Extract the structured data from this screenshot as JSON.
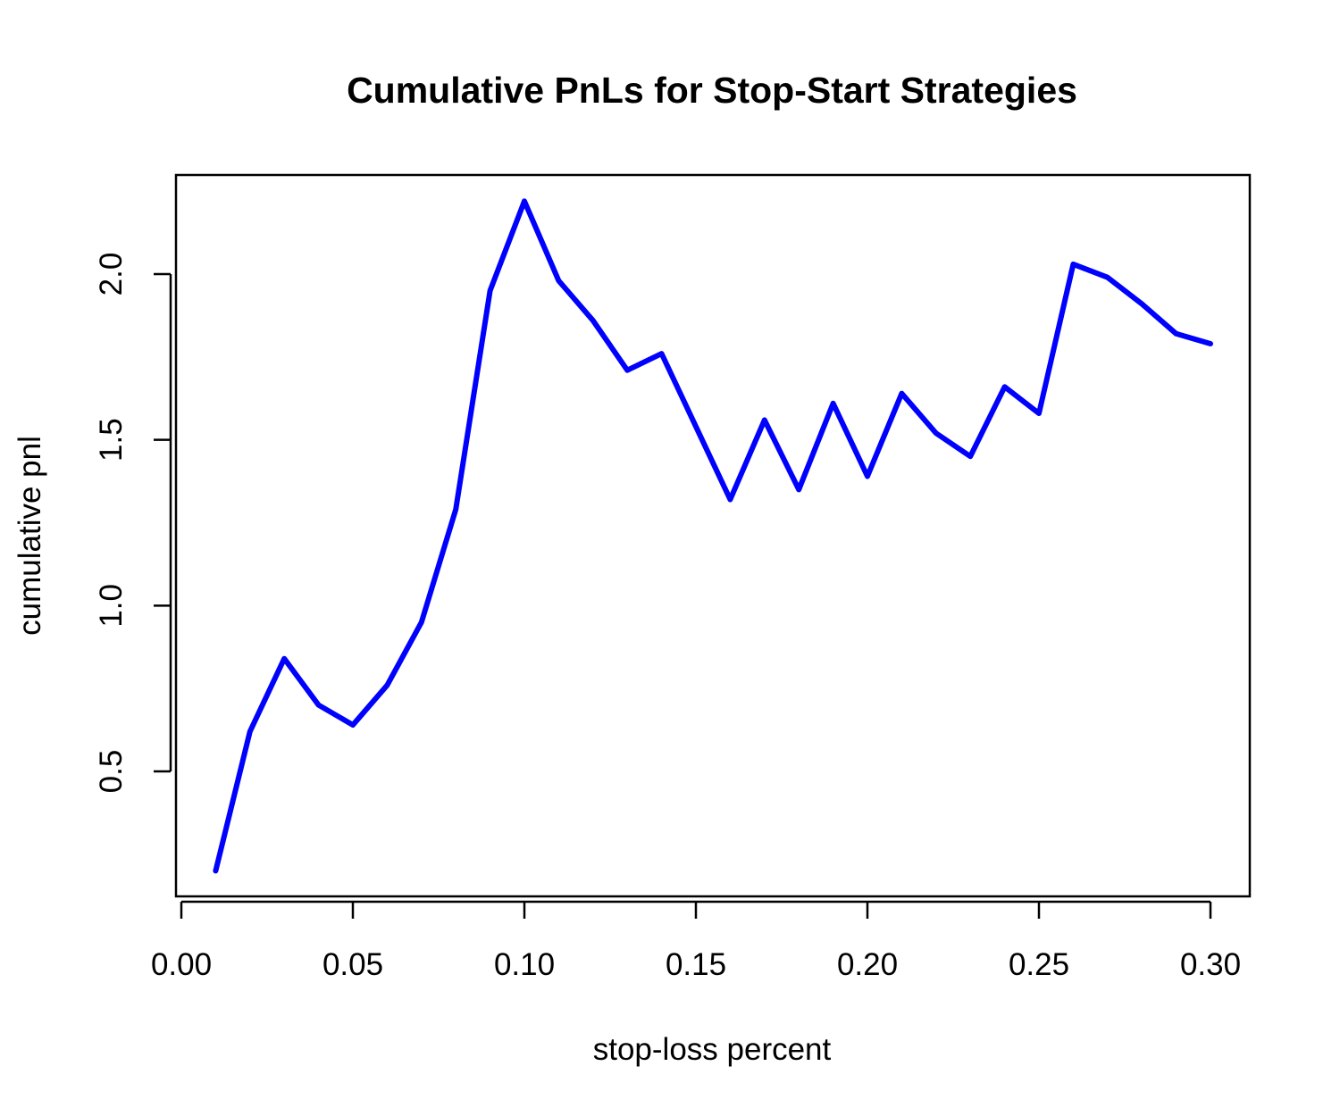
{
  "chart_data": {
    "type": "line",
    "title": "Cumulative PnLs for Stop-Start Strategies",
    "xlabel": "stop-loss percent",
    "ylabel": "cumulative pnl",
    "xlim": [
      0.0,
      0.3
    ],
    "ylim": [
      0.2,
      2.2
    ],
    "x_ticks": [
      0.0,
      0.05,
      0.1,
      0.15,
      0.2,
      0.25,
      0.3
    ],
    "x_tick_labels": [
      "0.00",
      "0.05",
      "0.10",
      "0.15",
      "0.20",
      "0.25",
      "0.30"
    ],
    "y_ticks": [
      0.5,
      1.0,
      1.5,
      2.0
    ],
    "y_tick_labels": [
      "0.5",
      "1.0",
      "1.5",
      "2.0"
    ],
    "grid": false,
    "series": [
      {
        "color": "#0000ff",
        "x": [
          0.01,
          0.02,
          0.03,
          0.04,
          0.05,
          0.06,
          0.07,
          0.08,
          0.09,
          0.1,
          0.11,
          0.12,
          0.13,
          0.14,
          0.15,
          0.16,
          0.17,
          0.18,
          0.19,
          0.2,
          0.21,
          0.22,
          0.23,
          0.24,
          0.25,
          0.26,
          0.27,
          0.28,
          0.29,
          0.3
        ],
        "y": [
          0.2,
          0.62,
          0.84,
          0.7,
          0.64,
          0.76,
          0.95,
          1.29,
          1.95,
          2.22,
          1.98,
          1.86,
          1.71,
          1.76,
          1.54,
          1.32,
          1.56,
          1.35,
          1.61,
          1.39,
          1.64,
          1.52,
          1.45,
          1.66,
          1.58,
          2.03,
          1.99,
          1.91,
          1.82,
          1.79
        ]
      }
    ]
  }
}
